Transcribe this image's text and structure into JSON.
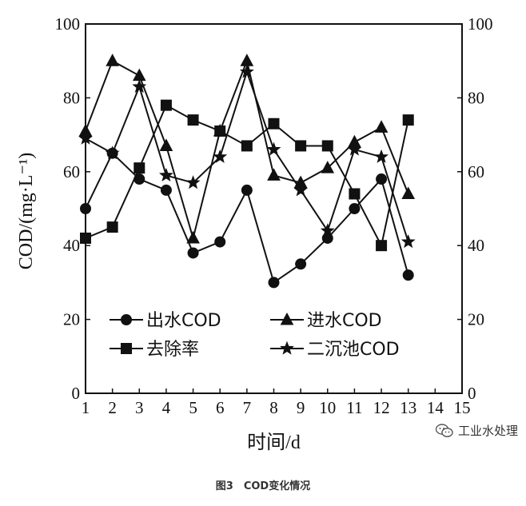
{
  "caption": "图3　COD变化情况",
  "watermark": {
    "text": "工业水处理",
    "icon": "wechat-icon"
  },
  "chart_data": {
    "type": "line",
    "xlabel": "时间/d",
    "ylabel": "COD/(mg·L⁻¹)",
    "y2label": "",
    "xlim": [
      1,
      15
    ],
    "ylim": [
      0,
      100
    ],
    "y2lim": [
      0,
      100
    ],
    "x_ticks": [
      1,
      2,
      3,
      4,
      5,
      6,
      7,
      8,
      9,
      10,
      11,
      12,
      13,
      14,
      15
    ],
    "y_ticks": [
      0,
      20,
      40,
      60,
      80,
      100
    ],
    "y2_ticks": [
      0,
      20,
      40,
      60,
      80,
      100
    ],
    "grid": false,
    "x": [
      1,
      2,
      3,
      4,
      5,
      6,
      7,
      8,
      9,
      10,
      11,
      12,
      13
    ],
    "series": [
      {
        "name": "出水COD",
        "marker": "circle",
        "axis": "left",
        "values": [
          50,
          65,
          58,
          55,
          38,
          41,
          55,
          30,
          35,
          42,
          50,
          58,
          32
        ]
      },
      {
        "name": "进水COD",
        "marker": "triangle",
        "axis": "left",
        "values": [
          71,
          90,
          86,
          67,
          42,
          71,
          90,
          59,
          57,
          61,
          68,
          72,
          54
        ]
      },
      {
        "name": "去除率",
        "marker": "square",
        "axis": "right",
        "values": [
          42,
          45,
          61,
          78,
          74,
          71,
          67,
          73,
          67,
          67,
          54,
          40,
          74
        ]
      },
      {
        "name": "二沉池COD",
        "marker": "star",
        "axis": "left",
        "values": [
          69,
          65,
          83,
          59,
          57,
          64,
          87,
          66,
          55,
          44,
          66,
          64,
          41
        ]
      }
    ]
  }
}
